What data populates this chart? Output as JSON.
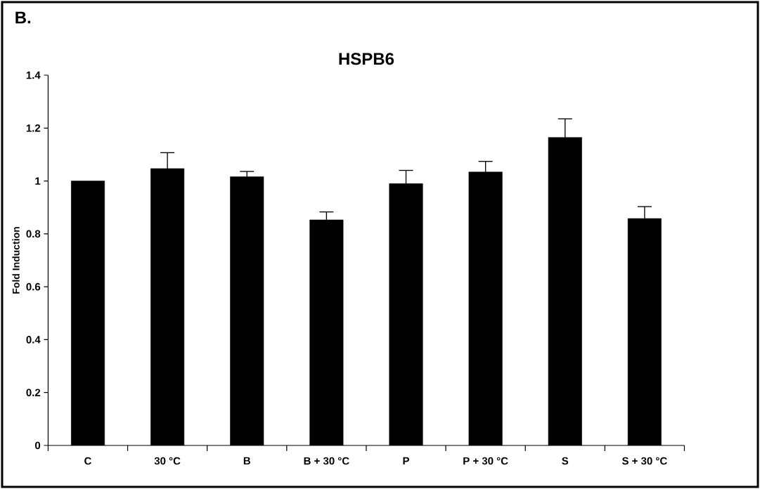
{
  "chart_data": {
    "type": "bar",
    "title": "HSPB6",
    "ylabel": "Fold Induction",
    "annotations": [
      "B."
    ],
    "categories": [
      "C",
      "30 °C",
      "B",
      "B + 30 °C",
      "P",
      "P + 30 °C",
      "S",
      "S + 30 °C"
    ],
    "values": [
      1.0,
      1.047,
      1.016,
      0.853,
      0.99,
      1.034,
      1.165,
      0.858
    ],
    "errors": [
      null,
      0.06,
      0.02,
      0.03,
      0.05,
      0.04,
      0.07,
      0.045
    ],
    "color": "#000000",
    "ylim": [
      0,
      1.4
    ],
    "yticks": [
      0,
      0.2,
      0.4,
      0.6,
      0.8,
      1,
      1.2,
      1.4
    ]
  }
}
